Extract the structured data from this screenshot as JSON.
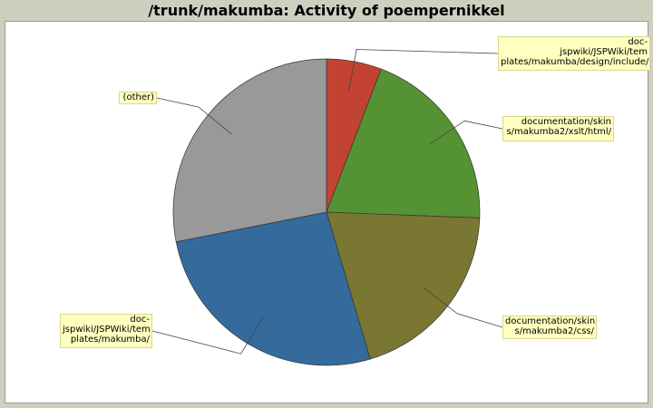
{
  "chart_data": {
    "type": "pie",
    "title": "/trunk/makumba: Activity of poempernikkel",
    "slices": [
      {
        "label": "doc-\njspwiki/JSPWiki/tem\nplates/makumba/design/include/",
        "value": 5.8,
        "color": "#c34333"
      },
      {
        "label": "documentation/skin\ns/makumba2/xslt/html/",
        "value": 19.8,
        "color": "#559234"
      },
      {
        "label": "documentation/skin\ns/makumba2/css/",
        "value": 19.8,
        "color": "#7a7733"
      },
      {
        "label": "doc-\njspwiki/JSPWiki/tem\nplates/makumba/",
        "value": 26.5,
        "color": "#356b9c"
      },
      {
        "label": "(other)",
        "value": 28.1,
        "color": "#999999"
      }
    ]
  }
}
